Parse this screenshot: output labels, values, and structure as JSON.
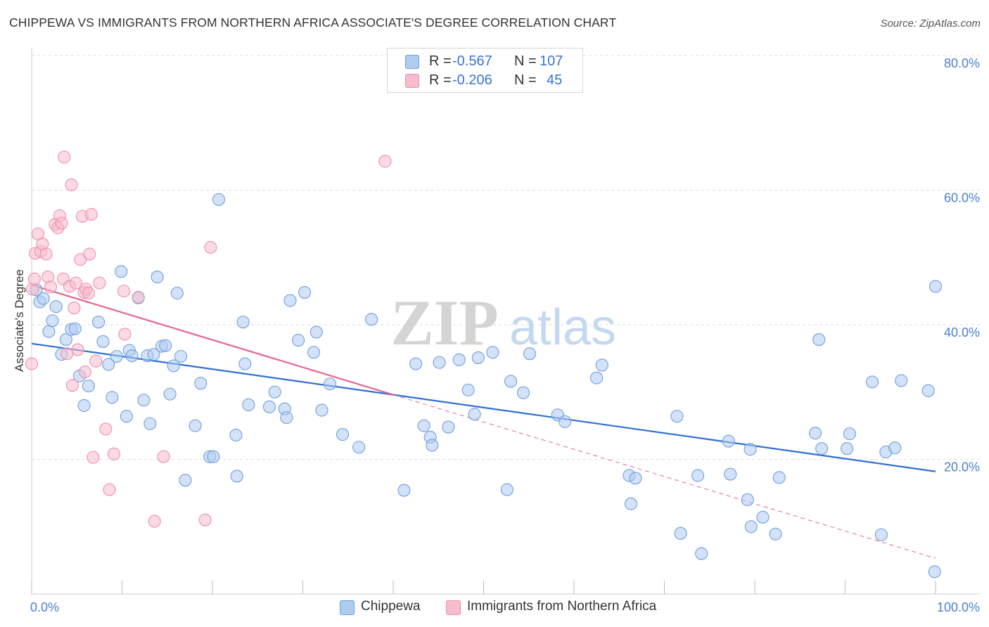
{
  "title": "CHIPPEWA VS IMMIGRANTS FROM NORTHERN AFRICA ASSOCIATE'S DEGREE CORRELATION CHART",
  "source": "Source: ZipAtlas.com",
  "watermark": {
    "zip": "ZIP",
    "atlas": "atlas"
  },
  "legend_top": {
    "rows": [
      {
        "r_label": "R =",
        "r_value": "-0.567",
        "n_label": "N =",
        "n_value": "107"
      },
      {
        "r_label": "R =",
        "r_value": "-0.206",
        "n_label": "N =",
        "n_value": "45"
      }
    ]
  },
  "legend_bottom": {
    "items": [
      {
        "label": "Chippewa"
      },
      {
        "label": "Immigrants from Northern Africa"
      }
    ]
  },
  "colors": {
    "blue_fill": "#aecbf0",
    "blue_stroke": "#6f9fe0",
    "blue_line": "#2e6fd3",
    "pink_fill": "#f7bccd",
    "pink_stroke": "#ee8fab",
    "pink_line": "#e8628f",
    "grid": "#dddddd",
    "tick_label": "#4a7fd0"
  },
  "chart_data": {
    "type": "scatter",
    "xlabel": "",
    "ylabel": "Associate's Degree",
    "xlim": [
      0,
      100
    ],
    "ylim": [
      0,
      80
    ],
    "x_tick_labels": [
      "0.0%",
      "100.0%"
    ],
    "y_ticks": [
      20,
      40,
      60,
      80
    ],
    "y_tick_labels": [
      "20.0%",
      "40.0%",
      "60.0%",
      "80.0%"
    ],
    "grid": true,
    "legend_position": "top-center",
    "series": [
      {
        "name": "Chippewa",
        "color": "#aecbf0",
        "trend": {
          "x": [
            0,
            100
          ],
          "y": [
            37.2,
            18.2
          ],
          "dashed_extension": false
        },
        "points": [
          [
            0.5,
            45.2
          ],
          [
            0.9,
            43.4
          ],
          [
            1.3,
            43.9
          ],
          [
            1.9,
            39.0
          ],
          [
            2.3,
            40.6
          ],
          [
            2.7,
            42.7
          ],
          [
            3.3,
            35.6
          ],
          [
            3.8,
            37.8
          ],
          [
            4.4,
            39.3
          ],
          [
            4.8,
            39.4
          ],
          [
            5.3,
            32.4
          ],
          [
            5.8,
            28.0
          ],
          [
            6.3,
            30.9
          ],
          [
            7.4,
            40.4
          ],
          [
            7.9,
            37.5
          ],
          [
            8.5,
            34.1
          ],
          [
            8.9,
            29.2
          ],
          [
            9.4,
            35.3
          ],
          [
            9.9,
            47.9
          ],
          [
            10.5,
            26.4
          ],
          [
            10.8,
            36.2
          ],
          [
            11.1,
            35.4
          ],
          [
            11.8,
            44.0
          ],
          [
            12.4,
            28.8
          ],
          [
            12.8,
            35.4
          ],
          [
            13.1,
            25.3
          ],
          [
            13.5,
            35.6
          ],
          [
            13.9,
            47.1
          ],
          [
            14.4,
            36.8
          ],
          [
            14.8,
            36.9
          ],
          [
            15.3,
            29.7
          ],
          [
            15.7,
            33.9
          ],
          [
            16.1,
            44.7
          ],
          [
            16.5,
            35.3
          ],
          [
            17.0,
            16.9
          ],
          [
            18.1,
            25.0
          ],
          [
            18.7,
            31.3
          ],
          [
            19.7,
            20.4
          ],
          [
            20.1,
            20.4
          ],
          [
            20.7,
            58.6
          ],
          [
            22.6,
            23.6
          ],
          [
            22.7,
            17.5
          ],
          [
            23.4,
            40.4
          ],
          [
            23.6,
            34.2
          ],
          [
            24.0,
            28.1
          ],
          [
            26.3,
            27.8
          ],
          [
            26.9,
            30.0
          ],
          [
            28.0,
            27.5
          ],
          [
            28.2,
            26.2
          ],
          [
            28.6,
            43.6
          ],
          [
            29.5,
            37.7
          ],
          [
            30.2,
            44.8
          ],
          [
            31.2,
            35.9
          ],
          [
            31.5,
            38.9
          ],
          [
            32.1,
            27.3
          ],
          [
            33.0,
            31.2
          ],
          [
            34.4,
            23.7
          ],
          [
            36.2,
            21.8
          ],
          [
            37.6,
            40.8
          ],
          [
            41.2,
            15.4
          ],
          [
            42.5,
            34.2
          ],
          [
            43.4,
            25.0
          ],
          [
            44.1,
            23.3
          ],
          [
            44.3,
            22.1
          ],
          [
            45.1,
            34.4
          ],
          [
            46.1,
            24.8
          ],
          [
            47.3,
            34.8
          ],
          [
            48.3,
            30.3
          ],
          [
            49.0,
            26.7
          ],
          [
            49.4,
            35.1
          ],
          [
            51.0,
            35.9
          ],
          [
            52.6,
            15.5
          ],
          [
            53.0,
            31.6
          ],
          [
            54.4,
            29.9
          ],
          [
            55.1,
            35.7
          ],
          [
            58.2,
            26.6
          ],
          [
            59.0,
            25.6
          ],
          [
            62.5,
            32.1
          ],
          [
            63.1,
            34.0
          ],
          [
            66.1,
            17.6
          ],
          [
            66.3,
            13.4
          ],
          [
            66.8,
            17.2
          ],
          [
            71.4,
            26.4
          ],
          [
            71.8,
            9.0
          ],
          [
            73.7,
            17.6
          ],
          [
            74.1,
            6.0
          ],
          [
            77.1,
            22.7
          ],
          [
            77.3,
            17.8
          ],
          [
            79.2,
            14.0
          ],
          [
            79.5,
            21.5
          ],
          [
            79.6,
            10.0
          ],
          [
            80.9,
            11.4
          ],
          [
            82.3,
            8.9
          ],
          [
            82.7,
            17.3
          ],
          [
            86.7,
            23.9
          ],
          [
            87.1,
            37.8
          ],
          [
            87.4,
            21.6
          ],
          [
            90.2,
            21.6
          ],
          [
            90.5,
            23.8
          ],
          [
            93.0,
            31.5
          ],
          [
            94.0,
            8.8
          ],
          [
            94.5,
            21.1
          ],
          [
            95.5,
            21.7
          ],
          [
            96.2,
            31.7
          ],
          [
            99.2,
            30.2
          ],
          [
            99.9,
            3.3
          ],
          [
            100.0,
            45.7
          ]
        ]
      },
      {
        "name": "Immigrants from Northern Africa",
        "color": "#f7bccd",
        "trend": {
          "x": [
            0,
            40
          ],
          "y": [
            45.9,
            29.6
          ],
          "dashed_extension": true,
          "dashed_to": [
            100,
            5.3
          ]
        },
        "points": [
          [
            0.1,
            45.3
          ],
          [
            0.3,
            46.8
          ],
          [
            0.4,
            50.6
          ],
          [
            0.7,
            53.5
          ],
          [
            1.0,
            50.9
          ],
          [
            1.2,
            52.0
          ],
          [
            1.6,
            50.5
          ],
          [
            1.8,
            47.1
          ],
          [
            2.1,
            45.6
          ],
          [
            2.6,
            54.9
          ],
          [
            2.9,
            54.4
          ],
          [
            3.1,
            56.2
          ],
          [
            3.3,
            55.1
          ],
          [
            3.5,
            46.8
          ],
          [
            3.6,
            64.9
          ],
          [
            3.9,
            35.7
          ],
          [
            4.2,
            45.7
          ],
          [
            4.4,
            60.8
          ],
          [
            4.5,
            31.0
          ],
          [
            4.7,
            42.5
          ],
          [
            4.9,
            46.2
          ],
          [
            5.1,
            36.3
          ],
          [
            5.4,
            49.7
          ],
          [
            5.6,
            56.1
          ],
          [
            5.8,
            44.8
          ],
          [
            5.9,
            33.0
          ],
          [
            6.0,
            45.3
          ],
          [
            6.3,
            44.7
          ],
          [
            6.4,
            50.5
          ],
          [
            6.6,
            56.4
          ],
          [
            6.8,
            20.3
          ],
          [
            7.1,
            34.6
          ],
          [
            7.5,
            46.2
          ],
          [
            8.2,
            24.5
          ],
          [
            8.6,
            15.5
          ],
          [
            9.1,
            20.8
          ],
          [
            10.2,
            45.0
          ],
          [
            10.3,
            38.6
          ],
          [
            11.8,
            44.1
          ],
          [
            13.6,
            10.8
          ],
          [
            14.6,
            20.4
          ],
          [
            19.2,
            11.0
          ],
          [
            19.8,
            51.5
          ],
          [
            39.1,
            64.3
          ],
          [
            0.0,
            34.2
          ]
        ]
      }
    ]
  }
}
